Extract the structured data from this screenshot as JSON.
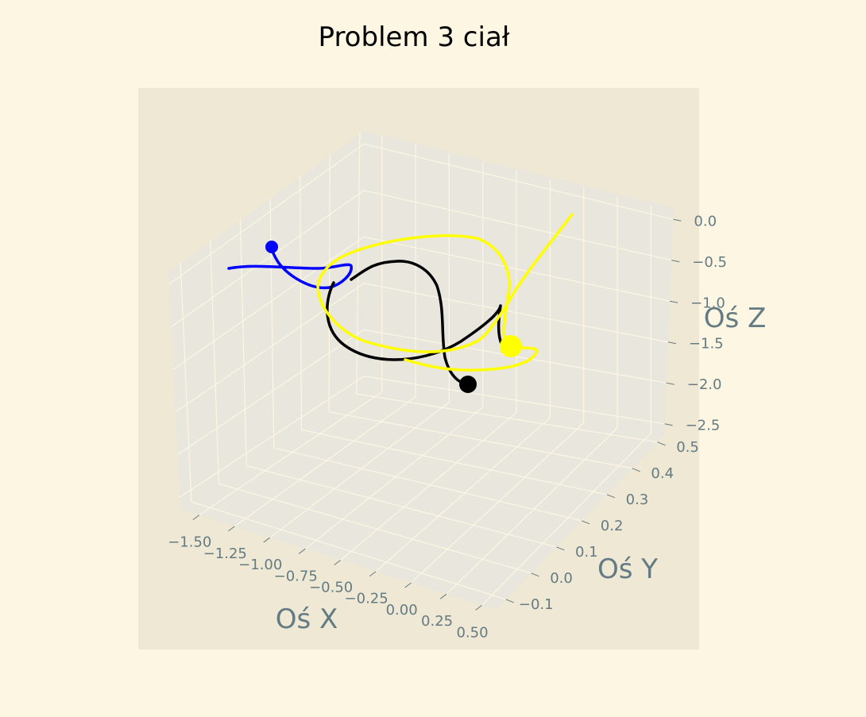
{
  "chart_data": {
    "type": "line3d",
    "title": "Problem 3 ciał",
    "xlabel": "Oś X",
    "ylabel": "Oś Y",
    "zlabel": "Oś Z",
    "xticks": [
      "−1.50",
      "−1.25",
      "−1.00",
      "−0.75",
      "−0.50",
      "−0.25",
      "0.00",
      "0.25",
      "0.50"
    ],
    "yticks": [
      "−0.1",
      "0.0",
      "0.1",
      "0.2",
      "0.3",
      "0.4",
      "0.5"
    ],
    "zticks": [
      "0.0",
      "−0.5",
      "−1.0",
      "−1.5",
      "−2.0",
      "−2.5"
    ],
    "grid": true,
    "series": [
      {
        "color": "#0000ff",
        "end_marker": true,
        "end_point": {
          "x": -1.12,
          "y": 0.38,
          "z": -0.25
        }
      },
      {
        "color": "#000000",
        "end_marker": true,
        "end_point": {
          "x": 0.18,
          "y": 0.12,
          "z": -1.9
        }
      },
      {
        "color": "#ffff00",
        "end_marker": true,
        "end_point": {
          "x": 0.35,
          "y": 0.22,
          "z": -1.4
        }
      }
    ]
  },
  "colors": {
    "figure_bg": "#fdf6e3",
    "axes_bg": "#eee8d5",
    "pane": "#e8e6dd",
    "grid": "#fdf6e3",
    "tick_color": "#657b83"
  }
}
